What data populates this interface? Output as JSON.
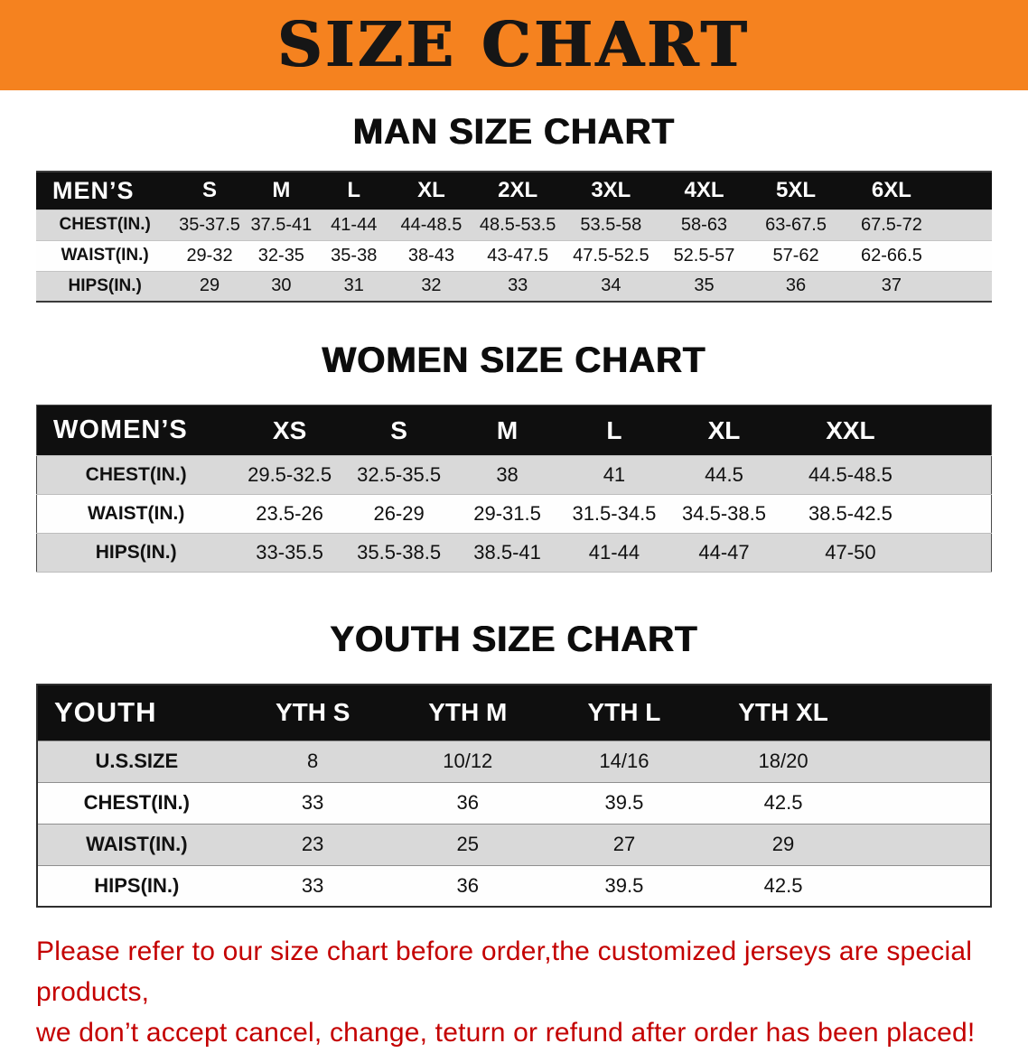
{
  "banner": {
    "title": "SIZE CHART",
    "bg_color": "#f5821f",
    "text_color": "#161616"
  },
  "colors": {
    "table_header_bg": "#0f0f0f",
    "table_row_gray": "#d9d9d9",
    "disclaimer_red": "#c40000"
  },
  "sections": [
    {
      "heading": "MAN SIZE CHART",
      "table": {
        "header": [
          "MEN’S",
          "S",
          "M",
          "L",
          "XL",
          "2XL",
          "3XL",
          "4XL",
          "5XL",
          "6XL"
        ],
        "rows": [
          {
            "label": "CHEST(IN.)",
            "values": [
              "35-37.5",
              "37.5-41",
              "41-44",
              "44-48.5",
              "48.5-53.5",
              "53.5-58",
              "58-63",
              "63-67.5",
              "67.5-72"
            ]
          },
          {
            "label": "WAIST(IN.)",
            "values": [
              "29-32",
              "32-35",
              "35-38",
              "38-43",
              "43-47.5",
              "47.5-52.5",
              "52.5-57",
              "57-62",
              "62-66.5"
            ]
          },
          {
            "label": "HIPS(IN.)",
            "values": [
              "29",
              "30",
              "31",
              "32",
              "33",
              "34",
              "35",
              "36",
              "37"
            ]
          }
        ]
      }
    },
    {
      "heading": "WOMEN SIZE CHART",
      "table": {
        "header": [
          "WOMEN’S",
          "XS",
          "S",
          "M",
          "L",
          "XL",
          "XXL"
        ],
        "rows": [
          {
            "label": "CHEST(IN.)",
            "values": [
              "29.5-32.5",
              "32.5-35.5",
              "38",
              "41",
              "44.5",
              "44.5-48.5"
            ]
          },
          {
            "label": "WAIST(IN.)",
            "values": [
              "23.5-26",
              "26-29",
              "29-31.5",
              "31.5-34.5",
              "34.5-38.5",
              "38.5-42.5"
            ]
          },
          {
            "label": "HIPS(IN.)",
            "values": [
              "33-35.5",
              "35.5-38.5",
              "38.5-41",
              "41-44",
              "44-47",
              "47-50"
            ]
          }
        ]
      }
    },
    {
      "heading": "YOUTH SIZE CHART",
      "table": {
        "header": [
          "YOUTH",
          "YTH S",
          "YTH M",
          "YTH L",
          "YTH XL"
        ],
        "rows": [
          {
            "label": "U.S.SIZE",
            "values": [
              "8",
              "10/12",
              "14/16",
              "18/20"
            ]
          },
          {
            "label": "CHEST(IN.)",
            "values": [
              "33",
              "36",
              "39.5",
              "42.5"
            ]
          },
          {
            "label": "WAIST(IN.)",
            "values": [
              "23",
              "25",
              "27",
              "29"
            ]
          },
          {
            "label": "HIPS(IN.)",
            "values": [
              "33",
              "36",
              "39.5",
              "42.5"
            ]
          }
        ]
      }
    }
  ],
  "disclaimer": {
    "line1": "Please refer to our size chart before order,the customized jerseys are special products,",
    "line2": "we don’t accept cancel, change, teturn or refund after order has been placed!"
  }
}
